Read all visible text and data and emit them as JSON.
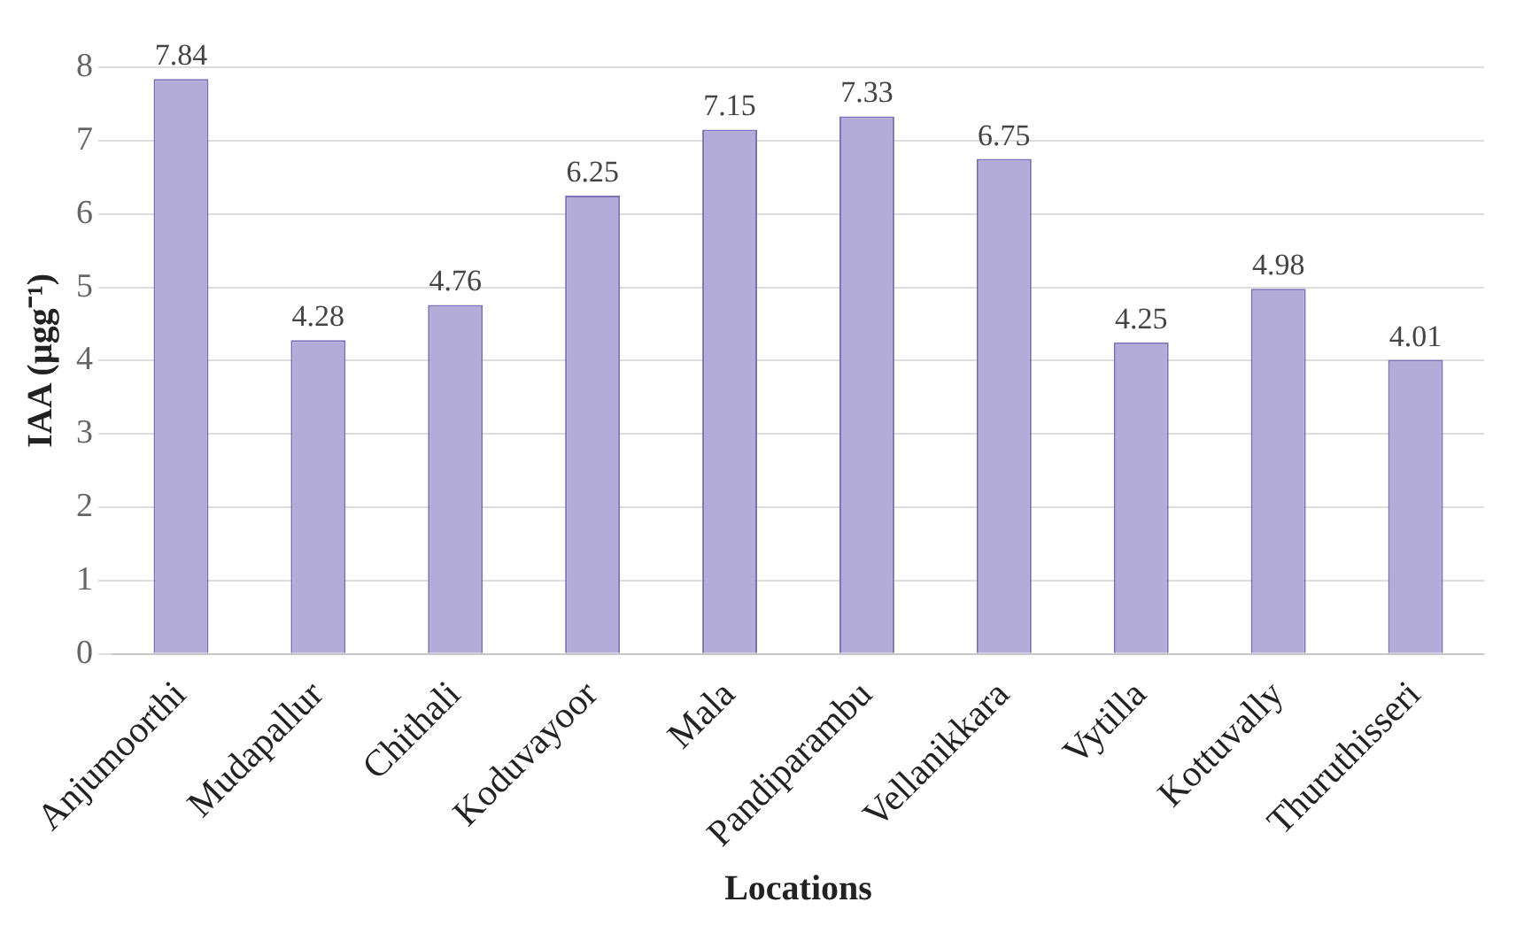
{
  "chart_data": {
    "type": "bar",
    "xlabel": "Locations",
    "ylabel": "IAA (µgg⁻¹)",
    "categories": [
      "Anjumoorthi",
      "Mudapallur",
      "Chithali",
      "Koduvayoor",
      "Mala",
      "Pandiparambu",
      "Vellanikkara",
      "Vytilla",
      "Kottuvally",
      "Thuruthisseri"
    ],
    "values": [
      7.84,
      4.28,
      4.76,
      6.25,
      7.15,
      7.33,
      6.75,
      4.25,
      4.98,
      4.01
    ],
    "color": "#b4acd8",
    "ylim": [
      0,
      8
    ],
    "yticks": [
      0,
      1,
      2,
      3,
      4,
      5,
      6,
      7,
      8
    ],
    "grid": "y",
    "data_labels": true
  }
}
